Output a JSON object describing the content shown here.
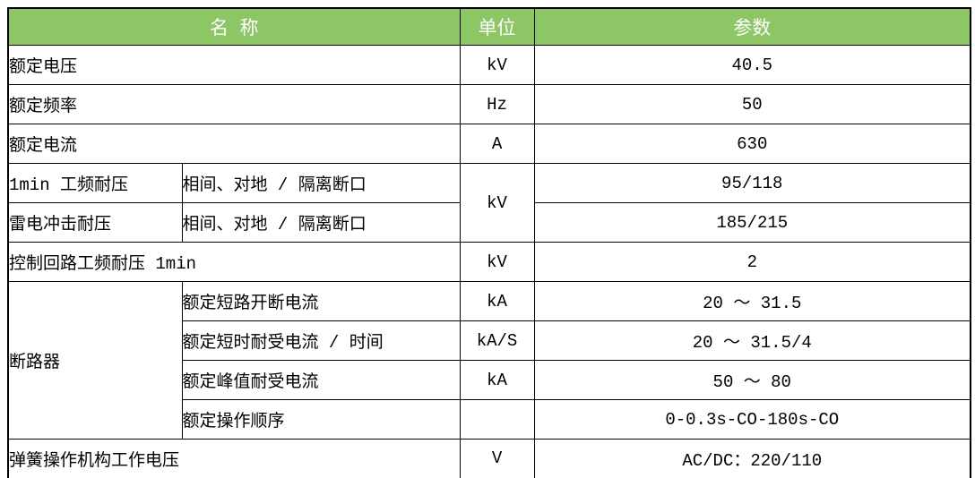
{
  "table": {
    "header": {
      "name_label": "名 称",
      "unit_label": "单位",
      "param_label": "参数",
      "header_bg_color": "#8CC665",
      "header_text_color": "#FFFFFF",
      "border_color": "#000000"
    },
    "rows": [
      {
        "cells": [
          {
            "kind": "name",
            "text": "额定电压",
            "colspan": 2
          },
          {
            "kind": "unit",
            "text": "kV"
          },
          {
            "kind": "value",
            "text": "40.5"
          }
        ]
      },
      {
        "cells": [
          {
            "kind": "name",
            "text": "额定频率",
            "colspan": 2
          },
          {
            "kind": "unit",
            "text": "Hz"
          },
          {
            "kind": "value",
            "text": "50"
          }
        ]
      },
      {
        "cells": [
          {
            "kind": "name",
            "text": "额定电流",
            "colspan": 2
          },
          {
            "kind": "unit",
            "text": "A"
          },
          {
            "kind": "value",
            "text": "630"
          }
        ]
      },
      {
        "cells": [
          {
            "kind": "name",
            "text": "1min 工频耐压"
          },
          {
            "kind": "subname",
            "text": "相间、对地 / 隔离断口"
          },
          {
            "kind": "unit",
            "text": "kV",
            "rowspan": 2
          },
          {
            "kind": "value",
            "text": "95/118"
          }
        ]
      },
      {
        "cells": [
          {
            "kind": "name",
            "text": "雷电冲击耐压"
          },
          {
            "kind": "subname",
            "text": "相间、对地 / 隔离断口"
          },
          {
            "kind": "value",
            "text": "185/215"
          }
        ]
      },
      {
        "cells": [
          {
            "kind": "name",
            "text": "控制回路工频耐压 1min",
            "colspan": 2
          },
          {
            "kind": "unit",
            "text": "kV"
          },
          {
            "kind": "value",
            "text": "2"
          }
        ]
      },
      {
        "cells": [
          {
            "kind": "name",
            "text": "断路器",
            "rowspan": 4
          },
          {
            "kind": "subname",
            "text": "额定短路开断电流"
          },
          {
            "kind": "unit",
            "text": "kA"
          },
          {
            "kind": "value",
            "text": "20 ～ 31.5"
          }
        ]
      },
      {
        "cells": [
          {
            "kind": "subname",
            "text": "额定短时耐受电流 / 时间"
          },
          {
            "kind": "unit",
            "text": "kA/S"
          },
          {
            "kind": "value",
            "text": "20 ～ 31.5/4"
          }
        ]
      },
      {
        "cells": [
          {
            "kind": "subname",
            "text": "额定峰值耐受电流"
          },
          {
            "kind": "unit",
            "text": "kA"
          },
          {
            "kind": "value",
            "text": "50 ～ 80"
          }
        ]
      },
      {
        "cells": [
          {
            "kind": "subname",
            "text": "额定操作顺序"
          },
          {
            "kind": "unit",
            "text": ""
          },
          {
            "kind": "value",
            "text": "0-0.3s-CO-180s-CO"
          }
        ]
      },
      {
        "cells": [
          {
            "kind": "name",
            "text": "弹簧操作机构工作电压",
            "colspan": 2
          },
          {
            "kind": "unit",
            "text": "V"
          },
          {
            "kind": "value",
            "text": "AC/DC：220/110"
          }
        ]
      }
    ]
  }
}
